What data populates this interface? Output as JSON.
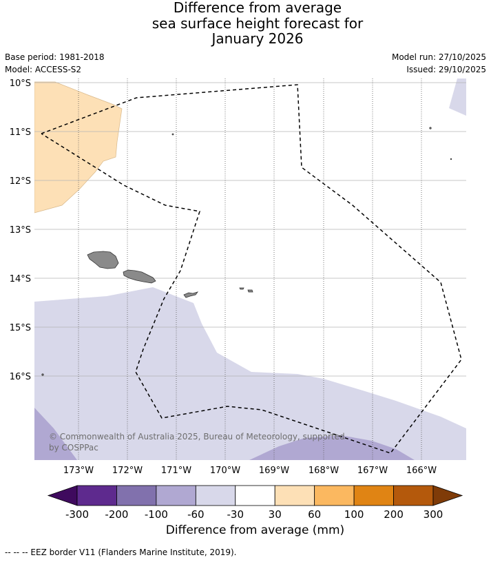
{
  "title": {
    "line1": "Difference from average",
    "line2": "sea surface height forecast for",
    "line3": "January 2026"
  },
  "meta": {
    "base_period": "Base period: 1981-2018",
    "model": "Model: ACCESS-S2",
    "model_run": "Model run: 27/10/2025",
    "issued": "Issued: 29/10/2025"
  },
  "map": {
    "lat_labels": [
      "10°S",
      "11°S",
      "12°S",
      "13°S",
      "14°S",
      "15°S",
      "16°S"
    ],
    "lon_labels": [
      "173°W",
      "172°W",
      "171°W",
      "170°W",
      "169°W",
      "168°W",
      "167°W",
      "166°W"
    ],
    "credit": "© Commonwealth of Australia 2025, Bureau of Meteorology, supported by COSPPac",
    "colors": {
      "ocean_default": "#ffffff",
      "anomaly_neg_30_60": "#d8d8ea",
      "anomaly_neg_60_100": "#b0a8d2",
      "anomaly_pos_30_60": "#fde0b6",
      "land": "#8a8a8a",
      "eez_line": "#000000",
      "grid": "#b4b4b4"
    }
  },
  "colorbar": {
    "title": "Difference from average (mm)",
    "ticks": [
      "-300",
      "-200",
      "-100",
      "-60",
      "-30",
      "30",
      "60",
      "100",
      "200",
      "300"
    ],
    "colors": [
      "#3f0a5e",
      "#5e2a8e",
      "#8171ad",
      "#b0a8d2",
      "#d8d8ea",
      "#ffffff",
      "#fde0b6",
      "#fbb860",
      "#e08414",
      "#b4590c",
      "#7f3b08"
    ]
  },
  "legend": {
    "eez": "--  --  -- EEZ border V11 (Flanders Marine Institute, 2019)."
  }
}
